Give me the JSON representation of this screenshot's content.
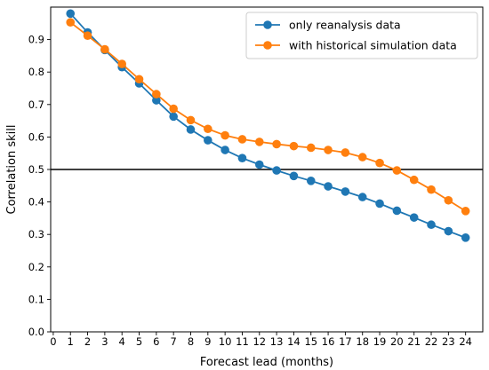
{
  "chart_data": {
    "type": "line",
    "title": "",
    "xlabel": "Forecast lead (months)",
    "ylabel": "Correlation skill",
    "xlim": [
      -0.15,
      25.0
    ],
    "ylim": [
      0.0,
      1.0
    ],
    "xticks": [
      0,
      1,
      2,
      3,
      4,
      5,
      6,
      7,
      8,
      9,
      10,
      11,
      12,
      13,
      14,
      15,
      16,
      17,
      18,
      19,
      20,
      21,
      22,
      23,
      24
    ],
    "yticks": [
      0.0,
      0.1,
      0.2,
      0.3,
      0.4,
      0.5,
      0.6,
      0.7,
      0.8,
      0.9
    ],
    "ytick_labels": [
      "0.0",
      "0.1",
      "0.2",
      "0.3",
      "0.4",
      "0.5",
      "0.6",
      "0.7",
      "0.8",
      "0.9"
    ],
    "grid": false,
    "legend_position": "top-right",
    "reference_line": {
      "y": 0.5,
      "color": "#000000"
    },
    "x": [
      1,
      2,
      3,
      4,
      5,
      6,
      7,
      8,
      9,
      10,
      11,
      12,
      13,
      14,
      15,
      16,
      17,
      18,
      19,
      20,
      21,
      22,
      23,
      24
    ],
    "series": [
      {
        "name": "only reanalysis data",
        "color": "#1f77b4",
        "values": [
          0.98,
          0.922,
          0.868,
          0.815,
          0.765,
          0.713,
          0.663,
          0.623,
          0.59,
          0.56,
          0.535,
          0.515,
          0.497,
          0.48,
          0.465,
          0.448,
          0.432,
          0.415,
          0.395,
          0.373,
          0.352,
          0.33,
          0.31,
          0.29
        ]
      },
      {
        "name": "with historical simulation data",
        "color": "#ff7f0e",
        "values": [
          0.953,
          0.912,
          0.87,
          0.825,
          0.778,
          0.732,
          0.687,
          0.652,
          0.625,
          0.605,
          0.593,
          0.585,
          0.578,
          0.572,
          0.567,
          0.56,
          0.552,
          0.538,
          0.52,
          0.497,
          0.468,
          0.438,
          0.405,
          0.372
        ]
      }
    ]
  }
}
